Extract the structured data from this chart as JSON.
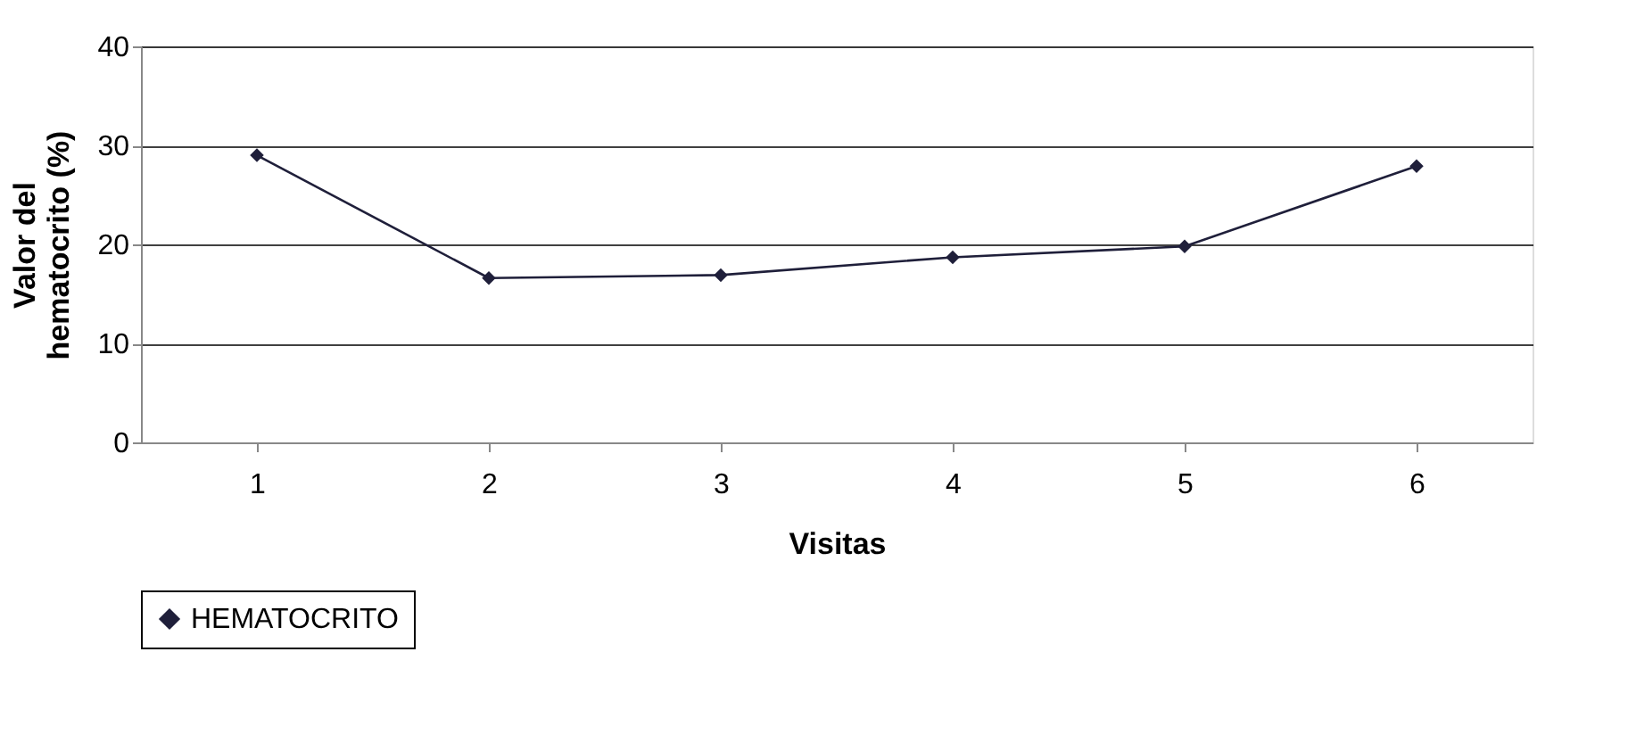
{
  "chart_data": {
    "type": "line",
    "xlabel": "Visitas",
    "ylabel": "Valor del hematocrito (%)",
    "categories": [
      "1",
      "2",
      "3",
      "4",
      "5",
      "6"
    ],
    "series": [
      {
        "name": "HEMATOCRITO",
        "color": "#1f1f3a",
        "values": [
          29.0,
          16.6,
          16.9,
          18.7,
          19.8,
          27.9
        ]
      }
    ],
    "ylim": [
      0,
      40
    ],
    "yticks": [
      0,
      10,
      20,
      30,
      40
    ],
    "grid": "y",
    "legend": "bottom",
    "marker": "diamond",
    "line_style": "solid"
  }
}
